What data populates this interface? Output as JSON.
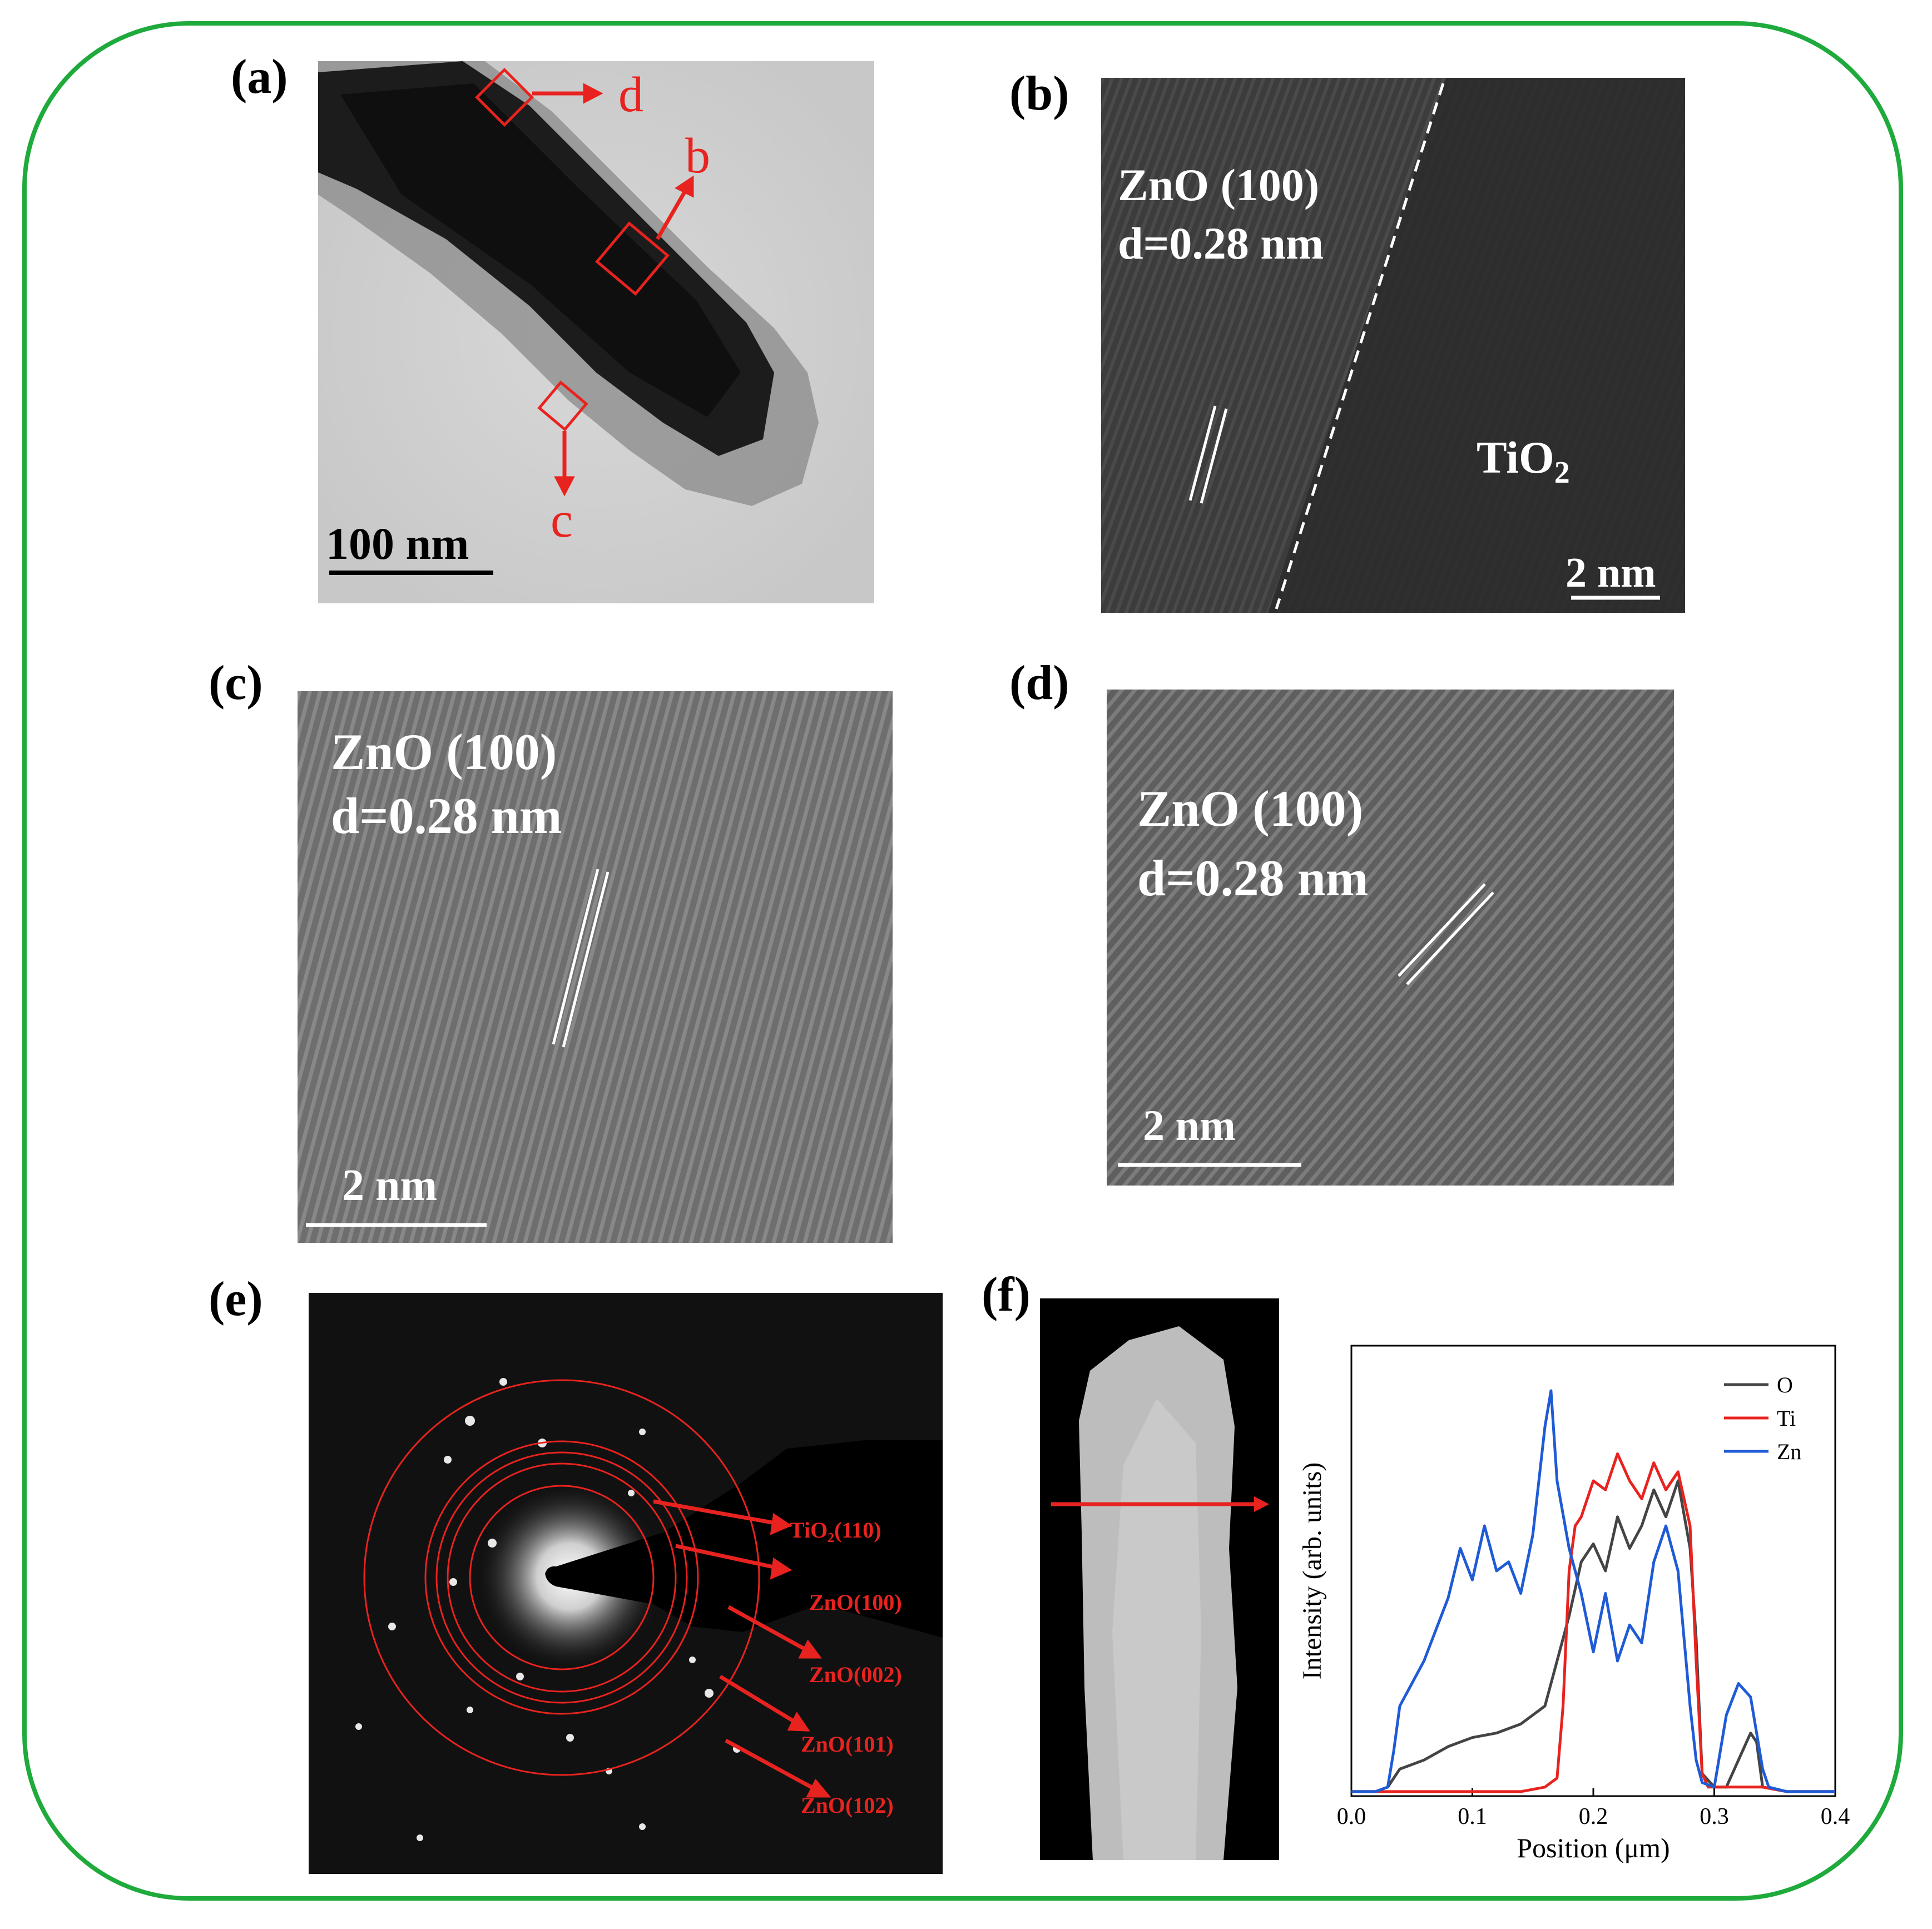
{
  "figure": {
    "panels": {
      "a": {
        "label": "(a)",
        "markers": [
          "d",
          "b",
          "c"
        ],
        "scale_bar": "100 nm"
      },
      "b": {
        "label": "(b)",
        "plane": "ZnO (100)",
        "d_spacing": "d=0.28 nm",
        "phase2": "TiO",
        "phase2_sub": "2",
        "scale_bar": "2 nm"
      },
      "c": {
        "label": "(c)",
        "plane": "ZnO (100)",
        "d_spacing": "d=0.28 nm",
        "scale_bar": "2 nm"
      },
      "d": {
        "label": "(d)",
        "plane": "ZnO (100)",
        "d_spacing": "d=0.28 nm",
        "scale_bar": "2 nm"
      },
      "e": {
        "label": "(e)",
        "rings": [
          "TiO₂(110)",
          "ZnO(100)",
          "ZnO(002)",
          "ZnO(101)",
          "ZnO(102)"
        ]
      },
      "f": {
        "label": "(f)"
      }
    }
  },
  "chart_data": {
    "type": "line",
    "xlabel": "Position (μm)",
    "ylabel": "Intensity (arb. units)",
    "xlim": [
      0.0,
      0.4
    ],
    "ylim": [
      0,
      1.0
    ],
    "xticks": [
      "0.0",
      "0.1",
      "0.2",
      "0.3",
      "0.4"
    ],
    "legend_position": "top-right",
    "series": [
      {
        "name": "O",
        "color": "#444444",
        "x": [
          0.0,
          0.02,
          0.03,
          0.04,
          0.06,
          0.08,
          0.1,
          0.12,
          0.14,
          0.15,
          0.16,
          0.17,
          0.18,
          0.19,
          0.2,
          0.21,
          0.22,
          0.23,
          0.24,
          0.25,
          0.26,
          0.27,
          0.28,
          0.285,
          0.29,
          0.3,
          0.31,
          0.32,
          0.33,
          0.335,
          0.34,
          0.36,
          0.38,
          0.4
        ],
        "y": [
          0.01,
          0.01,
          0.02,
          0.06,
          0.08,
          0.11,
          0.13,
          0.14,
          0.16,
          0.18,
          0.2,
          0.3,
          0.4,
          0.52,
          0.56,
          0.5,
          0.62,
          0.55,
          0.6,
          0.68,
          0.62,
          0.7,
          0.55,
          0.35,
          0.05,
          0.02,
          0.02,
          0.08,
          0.14,
          0.12,
          0.02,
          0.01,
          0.01,
          0.01
        ]
      },
      {
        "name": "Ti",
        "color": "#e8231f",
        "x": [
          0.0,
          0.02,
          0.04,
          0.06,
          0.1,
          0.14,
          0.16,
          0.17,
          0.175,
          0.18,
          0.185,
          0.19,
          0.2,
          0.21,
          0.22,
          0.23,
          0.24,
          0.25,
          0.26,
          0.27,
          0.28,
          0.285,
          0.29,
          0.295,
          0.3,
          0.32,
          0.34,
          0.36,
          0.4
        ],
        "y": [
          0.01,
          0.01,
          0.01,
          0.01,
          0.01,
          0.01,
          0.02,
          0.04,
          0.2,
          0.5,
          0.6,
          0.62,
          0.7,
          0.68,
          0.76,
          0.7,
          0.66,
          0.74,
          0.68,
          0.72,
          0.6,
          0.3,
          0.05,
          0.02,
          0.02,
          0.02,
          0.02,
          0.01,
          0.01
        ]
      },
      {
        "name": "Zn",
        "color": "#1f5bd6",
        "x": [
          0.0,
          0.02,
          0.03,
          0.035,
          0.04,
          0.06,
          0.08,
          0.09,
          0.1,
          0.11,
          0.12,
          0.13,
          0.14,
          0.15,
          0.16,
          0.165,
          0.17,
          0.18,
          0.19,
          0.2,
          0.21,
          0.22,
          0.23,
          0.24,
          0.25,
          0.26,
          0.27,
          0.28,
          0.285,
          0.29,
          0.3,
          0.31,
          0.32,
          0.33,
          0.34,
          0.345,
          0.36,
          0.4
        ],
        "y": [
          0.01,
          0.01,
          0.02,
          0.1,
          0.2,
          0.3,
          0.44,
          0.55,
          0.48,
          0.6,
          0.5,
          0.52,
          0.45,
          0.58,
          0.82,
          0.9,
          0.7,
          0.55,
          0.45,
          0.32,
          0.45,
          0.3,
          0.38,
          0.34,
          0.52,
          0.6,
          0.5,
          0.2,
          0.08,
          0.03,
          0.02,
          0.18,
          0.25,
          0.22,
          0.06,
          0.02,
          0.01,
          0.01
        ]
      }
    ]
  }
}
